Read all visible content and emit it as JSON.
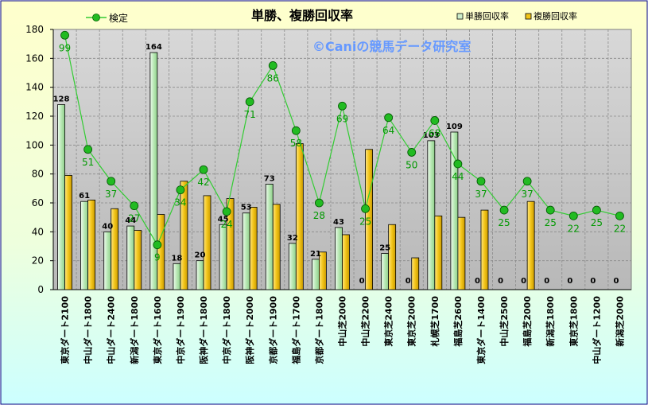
{
  "chart_data": {
    "type": "bar",
    "title": "単勝、複勝回収率",
    "watermark": "©Caniの競馬データ研究室",
    "categories": [
      "東京ダート2100",
      "中山ダート1800",
      "中山ダート2400",
      "新潟ダート1800",
      "東京ダート1600",
      "中京ダート1900",
      "阪神ダート1800",
      "中京ダート1800",
      "阪神ダート2000",
      "京都ダート1900",
      "福島ダート1700",
      "京都ダート1800",
      "中山芝2000",
      "中山芝2200",
      "東京芝2400",
      "東京芝2000",
      "札幌芝1700",
      "福島芝2600",
      "東京ダート1400",
      "中山芝2500",
      "福島芝2000",
      "新潟芝1800",
      "東京芝1800",
      "中山ダート1200",
      "新潟芝2000"
    ],
    "series": [
      {
        "name": "単勝回収率",
        "type": "bar",
        "color": "#cdeecb",
        "values": [
          128,
          61,
          40,
          44,
          164,
          18,
          20,
          45,
          53,
          73,
          32,
          21,
          43,
          0,
          25,
          0,
          103,
          109,
          0,
          0,
          0,
          0,
          0,
          0,
          0
        ]
      },
      {
        "name": "複勝回収率",
        "type": "bar",
        "color": "#f2c418",
        "values": [
          79,
          62,
          56,
          41,
          52,
          75,
          65,
          63,
          57,
          59,
          101,
          26,
          38,
          97,
          45,
          22,
          51,
          50,
          55,
          0,
          61,
          0,
          0,
          0,
          0
        ]
      },
      {
        "name": "検定",
        "type": "line",
        "color": "#33cc33",
        "values": [
          176,
          97,
          75,
          58,
          31,
          69,
          83,
          54,
          130,
          155,
          110,
          60,
          127,
          56,
          119,
          95,
          117,
          87,
          75,
          55,
          75,
          55,
          51,
          55,
          51
        ]
      }
    ],
    "bar_labels": [
      "128",
      "61",
      "40",
      "44",
      "164",
      "18",
      "20",
      "45",
      "53",
      "73",
      "32",
      "21",
      "43",
      "0",
      "25",
      "0",
      "103",
      "109",
      "0",
      "0",
      "0",
      "0",
      "0",
      "0",
      "0"
    ],
    "line_labels": [
      "99",
      "51",
      "37",
      "27",
      "9",
      "34",
      "42",
      "24",
      "71",
      "86",
      "58",
      "28",
      "69",
      "25",
      "64",
      "50",
      "68",
      "44",
      "37",
      "25",
      "37",
      "25",
      "22",
      "25",
      "22"
    ],
    "ylim": [
      0,
      180
    ],
    "yticks": [
      0,
      20,
      40,
      60,
      80,
      100,
      120,
      140,
      160,
      180
    ],
    "legend_placement": "top",
    "grid": true,
    "colors": {
      "plot_bg": "#c0c0c0",
      "outer_bg": "#ffffcc",
      "lower_bg": "#ccffff",
      "border": "#000080",
      "line_label": "#009900",
      "watermark": "#6699ff"
    }
  }
}
